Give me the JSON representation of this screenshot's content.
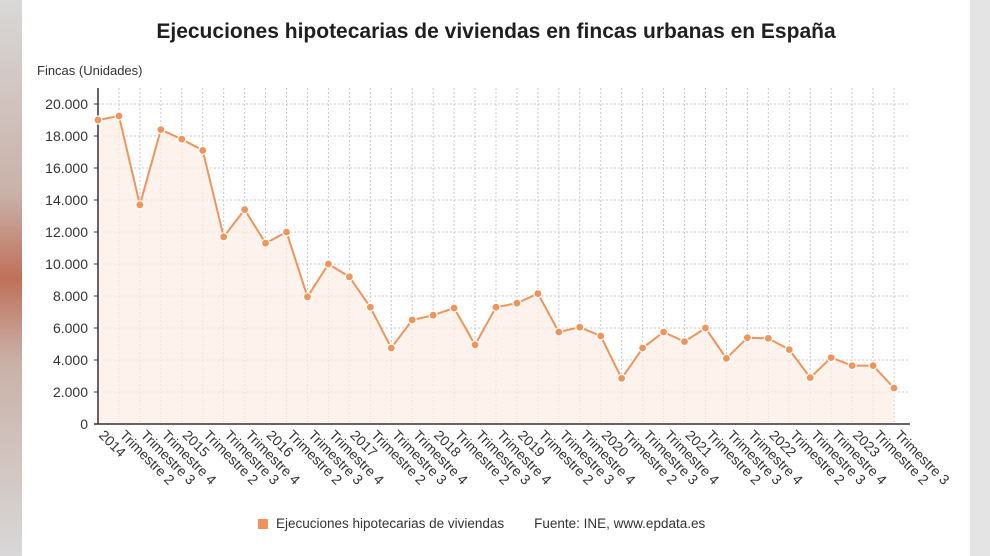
{
  "chart_data": {
    "type": "line",
    "title": "Ejecuciones hipotecarias de viviendas en fincas urbanas en España",
    "ylabel": "Fincas (Unidades)",
    "xlabel": "",
    "ylim": [
      0,
      21000
    ],
    "yticks": [
      0,
      2000,
      4000,
      6000,
      8000,
      10000,
      12000,
      14000,
      16000,
      18000,
      20000
    ],
    "ytick_labels": [
      "0",
      "2.000",
      "4.000",
      "6.000",
      "8.000",
      "10.000",
      "12.000",
      "14.000",
      "16.000",
      "18.000",
      "20.000"
    ],
    "grid": true,
    "legend_position": "bottom",
    "colors": {
      "line": "#f0945c",
      "area": "#fdeee5",
      "grid": "#c8c8c8",
      "axis": "#333333"
    },
    "categories": [
      "2014",
      "Trimestre 2",
      "Trimestre 3",
      "Trimestre 4",
      "2015",
      "Trimestre 2",
      "Trimestre 3",
      "Trimestre 4",
      "2016",
      "Trimestre 2",
      "Trimestre 3",
      "Trimestre 4",
      "2017",
      "Trimestre 2",
      "Trimestre 3",
      "Trimestre 4",
      "2018",
      "Trimestre 2",
      "Trimestre 3",
      "Trimestre 4",
      "2019",
      "Trimestre 2",
      "Trimestre 3",
      "Trimestre 4",
      "2020",
      "Trimestre 2",
      "Trimestre 3",
      "Trimestre 4",
      "2021",
      "Trimestre 2",
      "Trimestre 3",
      "Trimestre 4",
      "2022",
      "Trimestre 2",
      "Trimestre 3",
      "Trimestre 4",
      "2023",
      "Trimestre 2",
      "Trimestre 3"
    ],
    "series": [
      {
        "name": "Ejecuciones hipotecarias de viviendas",
        "values": [
          19000,
          19250,
          13700,
          18400,
          17800,
          17100,
          11700,
          13400,
          11300,
          12000,
          7950,
          10000,
          9200,
          7300,
          4750,
          6500,
          6800,
          7250,
          4950,
          7300,
          7550,
          8150,
          5750,
          6050,
          5500,
          2850,
          4750,
          5750,
          5150,
          6000,
          4100,
          5400,
          5350,
          4650,
          2900,
          4150,
          3650,
          3650,
          2250
        ]
      }
    ],
    "source": "Fuente: INE, www.epdata.es"
  }
}
